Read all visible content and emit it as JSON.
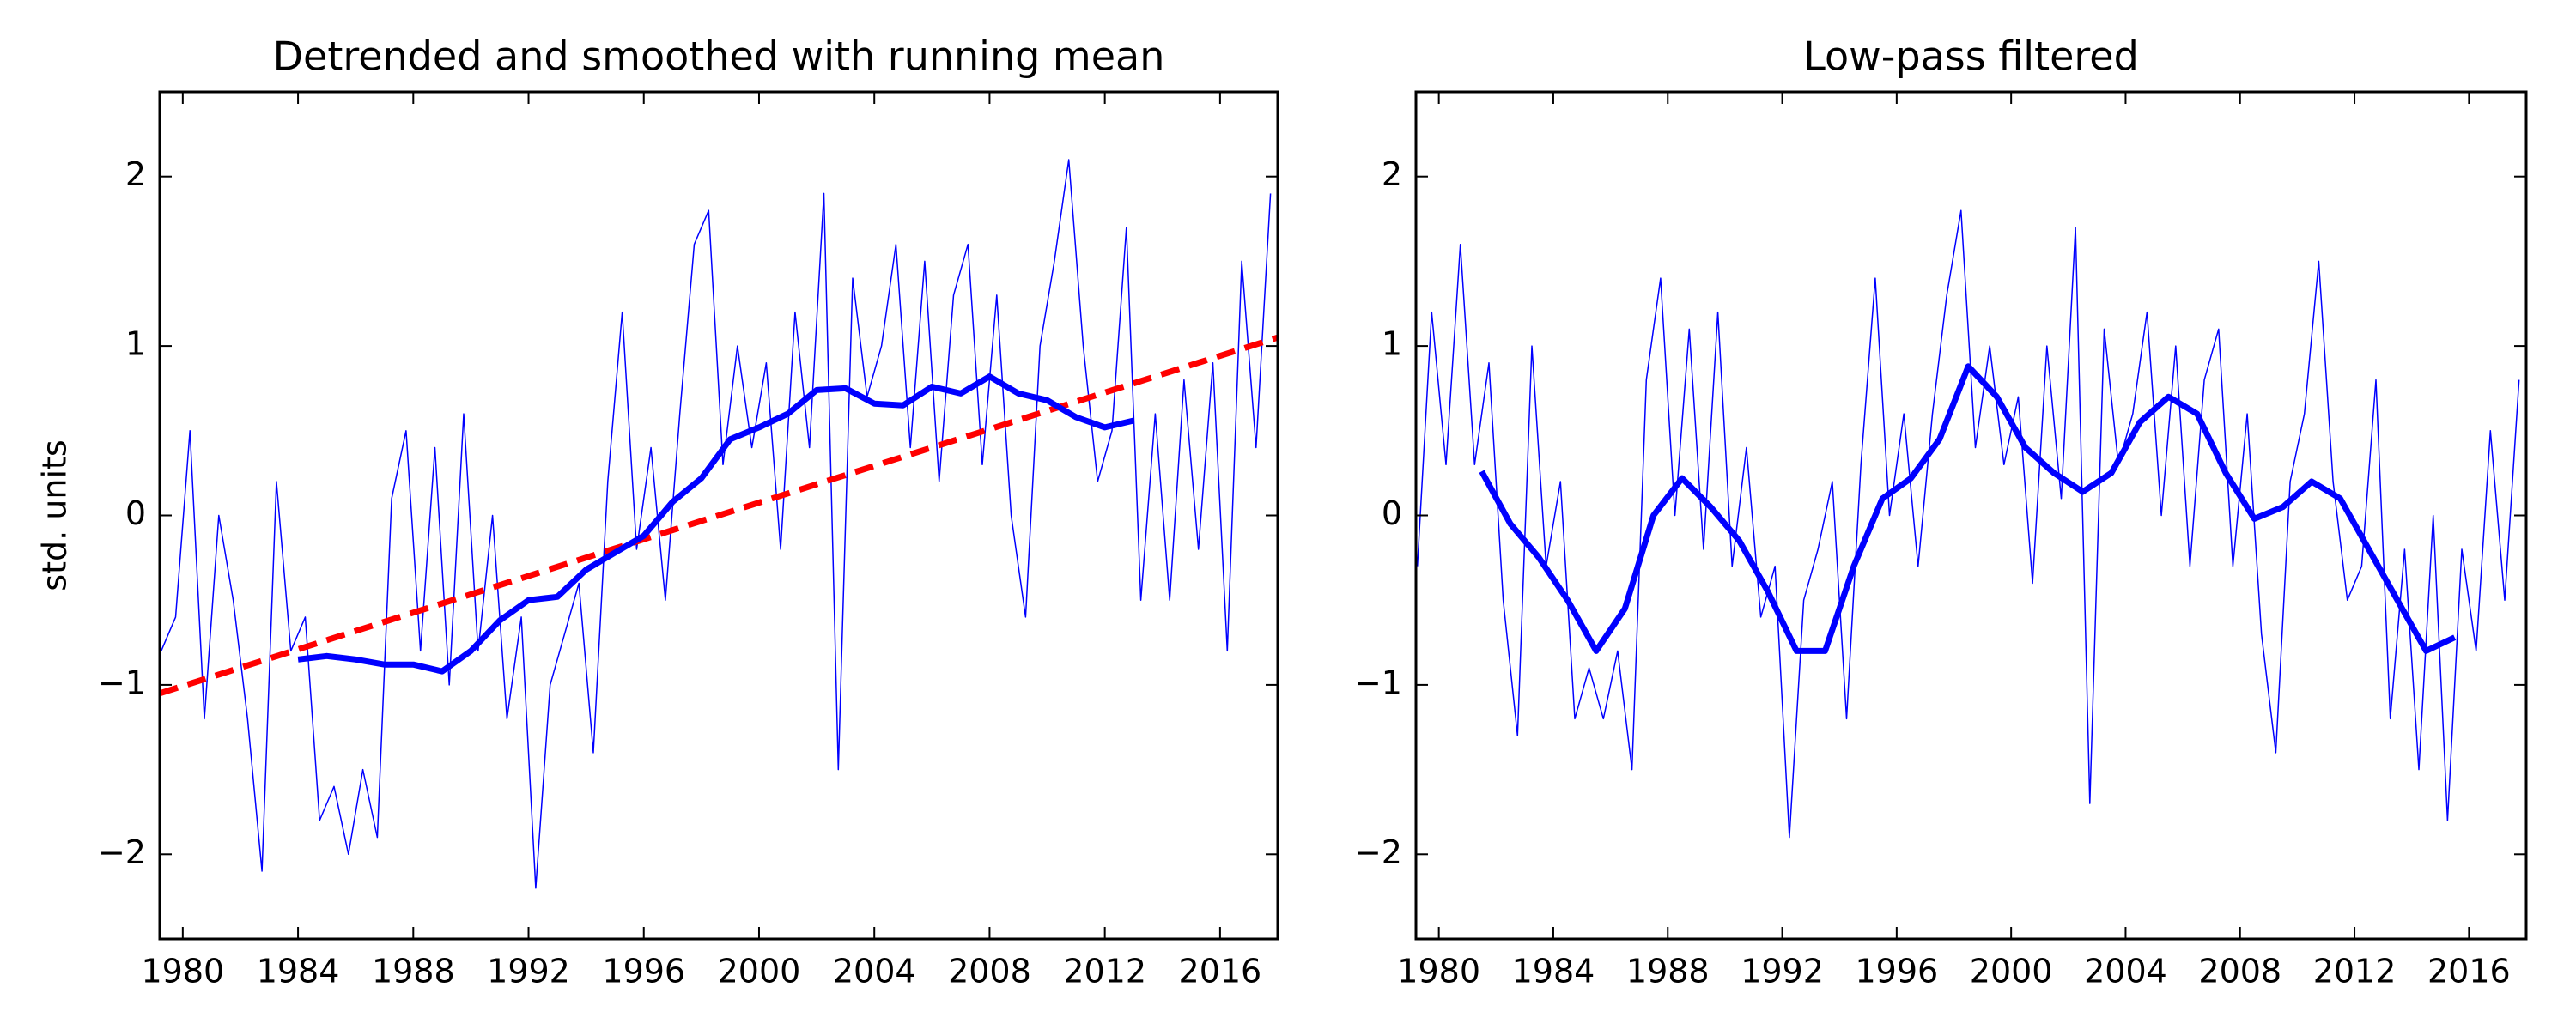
{
  "chart_data": [
    {
      "type": "line",
      "title": "Detrended and smoothed with running mean",
      "ylabel": "std. units",
      "xlim": [
        1979.2,
        2018
      ],
      "ylim": [
        -2.5,
        2.5
      ],
      "xticks": [
        1980,
        1984,
        1988,
        1992,
        1996,
        2000,
        2004,
        2008,
        2012,
        2016
      ],
      "yticks": [
        {
          "value": -2,
          "label": "−2"
        },
        {
          "value": -1,
          "label": "−1"
        },
        0,
        1,
        2
      ],
      "series": [
        {
          "color": "#0000ff",
          "width": "thin",
          "dash": false,
          "x": [
            1979.25,
            1979.75,
            1980.25,
            1980.75,
            1981.25,
            1981.75,
            1982.25,
            1982.75,
            1983.25,
            1983.75,
            1984.25,
            1984.75,
            1985.25,
            1985.75,
            1986.25,
            1986.75,
            1987.25,
            1987.75,
            1988.25,
            1988.75,
            1989.25,
            1989.75,
            1990.25,
            1990.75,
            1991.25,
            1991.75,
            1992.25,
            1992.75,
            1993.25,
            1993.75,
            1994.25,
            1994.75,
            1995.25,
            1995.75,
            1996.25,
            1996.75,
            1997.25,
            1997.75,
            1998.25,
            1998.75,
            1999.25,
            1999.75,
            2000.25,
            2000.75,
            2001.25,
            2001.75,
            2002.25,
            2002.75,
            2003.25,
            2003.75,
            2004.25,
            2004.75,
            2005.25,
            2005.75,
            2006.25,
            2006.75,
            2007.25,
            2007.75,
            2008.25,
            2008.75,
            2009.25,
            2009.75,
            2010.25,
            2010.75,
            2011.25,
            2011.75,
            2012.25,
            2012.75,
            2013.25,
            2013.75,
            2014.25,
            2014.75,
            2015.25,
            2015.75,
            2016.25,
            2016.75,
            2017.25,
            2017.75
          ],
          "values": [
            -0.8,
            -0.6,
            0.5,
            -1.2,
            0.0,
            -0.5,
            -1.2,
            -2.1,
            0.2,
            -0.8,
            -0.6,
            -1.8,
            -1.6,
            -2.0,
            -1.5,
            -1.9,
            0.1,
            0.5,
            -0.8,
            0.4,
            -1.0,
            0.6,
            -0.8,
            0.0,
            -1.2,
            -0.6,
            -2.2,
            -1.0,
            -0.7,
            -0.4,
            -1.4,
            0.2,
            1.2,
            -0.2,
            0.4,
            -0.5,
            0.6,
            1.6,
            1.8,
            0.3,
            1.0,
            0.4,
            0.9,
            -0.2,
            1.2,
            0.4,
            1.9,
            -1.5,
            1.4,
            0.7,
            1.0,
            1.6,
            0.4,
            1.5,
            0.2,
            1.3,
            1.6,
            0.3,
            1.3,
            0.0,
            -0.6,
            1.0,
            1.5,
            2.1,
            1.0,
            0.2,
            0.5,
            1.7,
            -0.5,
            0.6,
            -0.5,
            0.8,
            -0.2,
            0.9,
            -0.8,
            1.5,
            0.4,
            1.9
          ]
        },
        {
          "color": "#ff0000",
          "width": "thick",
          "dash": true,
          "x": [
            1979.2,
            2018
          ],
          "values": [
            -1.05,
            1.05
          ]
        },
        {
          "color": "#0000ff",
          "width": "thick",
          "dash": false,
          "x": [
            1984,
            1985,
            1986,
            1987,
            1988,
            1989,
            1990,
            1991,
            1992,
            1993,
            1994,
            1995,
            1996,
            1997,
            1998,
            1999,
            2000,
            2001,
            2002,
            2003,
            2004,
            2005,
            2006,
            2007,
            2008,
            2009,
            2010,
            2011,
            2012,
            2013
          ],
          "values": [
            -0.85,
            -0.83,
            -0.85,
            -0.88,
            -0.88,
            -0.92,
            -0.8,
            -0.62,
            -0.5,
            -0.48,
            -0.32,
            -0.22,
            -0.12,
            0.08,
            0.22,
            0.45,
            0.52,
            0.6,
            0.74,
            0.75,
            0.66,
            0.65,
            0.76,
            0.72,
            0.82,
            0.72,
            0.68,
            0.58,
            0.52,
            0.56
          ]
        }
      ]
    },
    {
      "type": "line",
      "title": "Low-pass filtered",
      "xlim": [
        1979.2,
        2018
      ],
      "ylim": [
        -2.5,
        2.5
      ],
      "xticks": [
        1980,
        1984,
        1988,
        1992,
        1996,
        2000,
        2004,
        2008,
        2012,
        2016
      ],
      "yticks": [
        {
          "value": -2,
          "label": "−2"
        },
        {
          "value": -1,
          "label": "−1"
        },
        0,
        1,
        2
      ],
      "series": [
        {
          "color": "#0000ff",
          "width": "thin",
          "dash": false,
          "x": [
            1979.25,
            1979.75,
            1980.25,
            1980.75,
            1981.25,
            1981.75,
            1982.25,
            1982.75,
            1983.25,
            1983.75,
            1984.25,
            1984.75,
            1985.25,
            1985.75,
            1986.25,
            1986.75,
            1987.25,
            1987.75,
            1988.25,
            1988.75,
            1989.25,
            1989.75,
            1990.25,
            1990.75,
            1991.25,
            1991.75,
            1992.25,
            1992.75,
            1993.25,
            1993.75,
            1994.25,
            1994.75,
            1995.25,
            1995.75,
            1996.25,
            1996.75,
            1997.25,
            1997.75,
            1998.25,
            1998.75,
            1999.25,
            1999.75,
            2000.25,
            2000.75,
            2001.25,
            2001.75,
            2002.25,
            2002.75,
            2003.25,
            2003.75,
            2004.25,
            2004.75,
            2005.25,
            2005.75,
            2006.25,
            2006.75,
            2007.25,
            2007.75,
            2008.25,
            2008.75,
            2009.25,
            2009.75,
            2010.25,
            2010.75,
            2011.25,
            2011.75,
            2012.25,
            2012.75,
            2013.25,
            2013.75,
            2014.25,
            2014.75,
            2015.25,
            2015.75,
            2016.25,
            2016.75,
            2017.25,
            2017.75
          ],
          "values": [
            -0.3,
            1.2,
            0.3,
            1.6,
            0.3,
            0.9,
            -0.5,
            -1.3,
            1.0,
            -0.3,
            0.2,
            -1.2,
            -0.9,
            -1.2,
            -0.8,
            -1.5,
            0.8,
            1.4,
            0.0,
            1.1,
            -0.2,
            1.2,
            -0.3,
            0.4,
            -0.6,
            -0.3,
            -1.9,
            -0.5,
            -0.2,
            0.2,
            -1.2,
            0.3,
            1.4,
            0.0,
            0.6,
            -0.3,
            0.6,
            1.3,
            1.8,
            0.4,
            1.0,
            0.3,
            0.7,
            -0.4,
            1.0,
            0.1,
            1.7,
            -1.7,
            1.1,
            0.3,
            0.6,
            1.2,
            0.0,
            1.0,
            -0.3,
            0.8,
            1.1,
            -0.3,
            0.6,
            -0.7,
            -1.4,
            0.2,
            0.6,
            1.5,
            0.2,
            -0.5,
            -0.3,
            0.8,
            -1.2,
            -0.2,
            -1.5,
            0.0,
            -1.8,
            -0.2,
            -0.8,
            0.5,
            -0.5,
            0.8
          ]
        },
        {
          "color": "#0000ff",
          "width": "thick",
          "dash": false,
          "x": [
            1981.5,
            1982.5,
            1983.5,
            1984.5,
            1985.5,
            1986.5,
            1987.5,
            1988.5,
            1989.5,
            1990.5,
            1991.5,
            1992.5,
            1993.5,
            1994.5,
            1995.5,
            1996.5,
            1997.5,
            1998.5,
            1999.5,
            2000.5,
            2001.5,
            2002.5,
            2003.5,
            2004.5,
            2005.5,
            2006.5,
            2007.5,
            2008.5,
            2009.5,
            2010.5,
            2011.5,
            2012.5,
            2013.5,
            2014.5,
            2015.5
          ],
          "values": [
            0.26,
            -0.05,
            -0.25,
            -0.5,
            -0.8,
            -0.55,
            0.0,
            0.22,
            0.05,
            -0.15,
            -0.45,
            -0.8,
            -0.8,
            -0.3,
            0.1,
            0.22,
            0.45,
            0.88,
            0.7,
            0.4,
            0.25,
            0.14,
            0.25,
            0.55,
            0.7,
            0.6,
            0.25,
            -0.02,
            0.05,
            0.2,
            0.1,
            -0.2,
            -0.5,
            -0.8,
            -0.72
          ]
        }
      ]
    }
  ]
}
